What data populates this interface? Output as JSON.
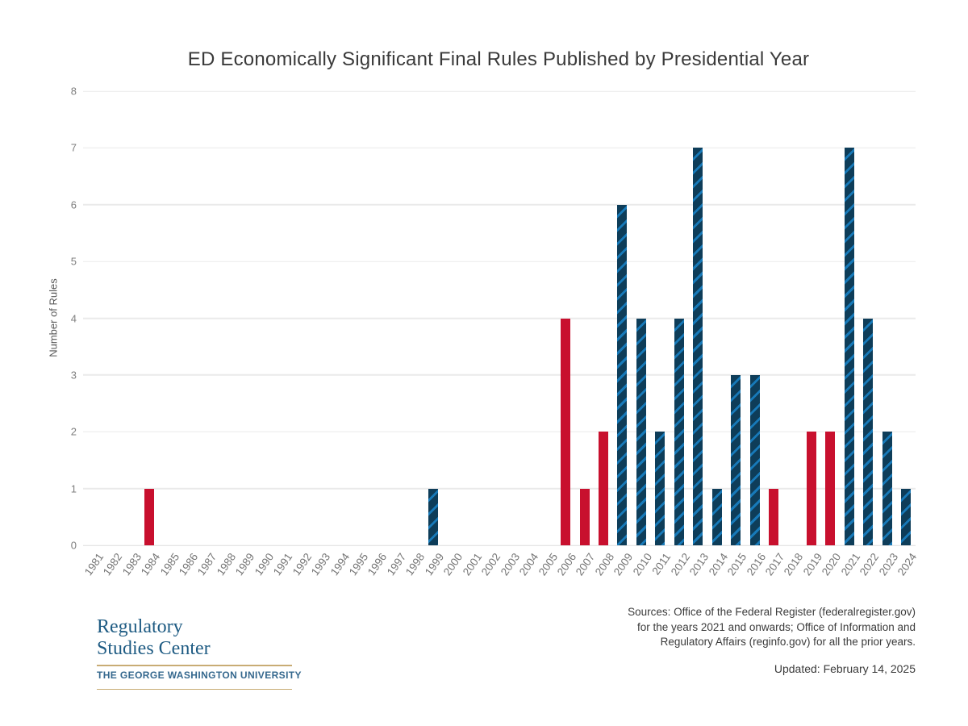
{
  "chart": {
    "title": "ED Economically Significant Final Rules Published by Presidential Year",
    "y_axis_label": "Number of Rules"
  },
  "chart_data": {
    "type": "bar",
    "title": "ED Economically Significant Final Rules Published by Presidential Year",
    "xlabel": "",
    "ylabel": "Number of Rules",
    "ylim": [
      0,
      8
    ],
    "y_ticks": [
      0,
      1,
      2,
      3,
      4,
      5,
      6,
      7,
      8
    ],
    "grid": true,
    "legend": false,
    "categories": [
      "1981",
      "1982",
      "1983",
      "1984",
      "1985",
      "1986",
      "1987",
      "1988",
      "1989",
      "1990",
      "1991",
      "1992",
      "1993",
      "1994",
      "1995",
      "1996",
      "1997",
      "1998",
      "1999",
      "2000",
      "2001",
      "2002",
      "2003",
      "2004",
      "2005",
      "2006",
      "2007",
      "2008",
      "2009",
      "2010",
      "2011",
      "2012",
      "2013",
      "2014",
      "2015",
      "2016",
      "2017",
      "2018",
      "2019",
      "2020",
      "2021",
      "2022",
      "2023",
      "2024"
    ],
    "values": [
      0,
      0,
      0,
      1,
      0,
      0,
      0,
      0,
      0,
      0,
      0,
      0,
      0,
      0,
      0,
      0,
      0,
      0,
      1,
      0,
      0,
      0,
      0,
      0,
      0,
      4,
      1,
      2,
      6,
      4,
      2,
      4,
      7,
      1,
      3,
      3,
      1,
      0,
      2,
      2,
      7,
      4,
      2,
      1
    ],
    "bar_colors": [
      null,
      null,
      null,
      "red",
      null,
      null,
      null,
      null,
      null,
      null,
      null,
      null,
      null,
      null,
      null,
      null,
      null,
      null,
      "blue",
      null,
      null,
      null,
      null,
      null,
      null,
      "red",
      "red",
      "red",
      "blue",
      "blue",
      "blue",
      "blue",
      "blue",
      "blue",
      "blue",
      "blue",
      "red",
      null,
      "red",
      "red",
      "blue",
      "blue",
      "blue",
      "blue"
    ]
  },
  "colors": {
    "republican_red": "#C8102E",
    "democrat_navy": "#0E3D59",
    "democrat_stripe": "#1779B8",
    "gridline": "#EAEAEA",
    "baseline": "#DEDEDE",
    "logo_blue": "#1E5B83",
    "logo_gold": "#C8AC74"
  },
  "footer": {
    "sources_line1": "Sources: Office of the Federal Register (federalregister.gov)",
    "sources_line2": "for the years 2021 and onwards; Office of Information and",
    "sources_line3": "Regulatory Affairs (reginfo.gov) for all the prior years.",
    "updated": "Updated: February 14, 2025",
    "logo": {
      "name_line1": "Regulatory",
      "name_line2": "Studies Center",
      "university": "THE GEORGE WASHINGTON UNIVERSITY"
    }
  }
}
